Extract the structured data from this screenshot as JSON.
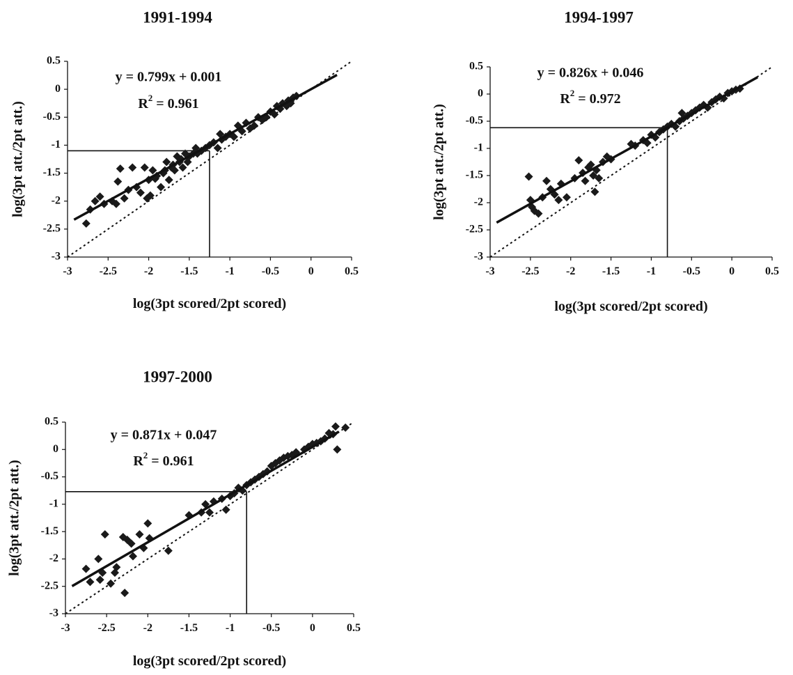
{
  "chart_data": [
    {
      "type": "scatter",
      "title": "1991-1994",
      "xlabel": "log(3pt scored/2pt scored)",
      "ylabel": "log(3pt att./2pt att.)",
      "xlim": [
        -3,
        0.5
      ],
      "ylim": [
        -3,
        0.5
      ],
      "x_ticks": [
        "-3",
        "-2.5",
        "-2",
        "-1.5",
        "-1",
        "-0.5",
        "0",
        "0.5"
      ],
      "y_ticks": [
        "0.5",
        "0",
        "-0.5",
        "-1",
        "-1.5",
        "-2",
        "-2.5",
        "-3"
      ],
      "equation": "y = 0.799x + 0.001",
      "r2_label": "R",
      "r2_sup": "2",
      "r2_value": " = 0.961",
      "fit": {
        "slope": 0.799,
        "intercept": 0.001
      },
      "reference_point": {
        "x": -1.25,
        "y": -1.1
      },
      "identity_line": true,
      "grid": false,
      "points": [
        [
          -2.77,
          -2.4
        ],
        [
          -2.72,
          -2.15
        ],
        [
          -2.66,
          -2.0
        ],
        [
          -2.6,
          -1.92
        ],
        [
          -2.55,
          -2.05
        ],
        [
          -2.45,
          -2.0
        ],
        [
          -2.4,
          -2.05
        ],
        [
          -2.38,
          -1.65
        ],
        [
          -2.35,
          -1.42
        ],
        [
          -2.3,
          -1.95
        ],
        [
          -2.25,
          -1.8
        ],
        [
          -2.2,
          -1.4
        ],
        [
          -2.15,
          -1.75
        ],
        [
          -2.1,
          -1.85
        ],
        [
          -2.05,
          -1.4
        ],
        [
          -2.02,
          -1.95
        ],
        [
          -2.0,
          -1.62
        ],
        [
          -1.98,
          -1.9
        ],
        [
          -1.95,
          -1.45
        ],
        [
          -1.92,
          -1.6
        ],
        [
          -1.9,
          -1.55
        ],
        [
          -1.85,
          -1.75
        ],
        [
          -1.82,
          -1.5
        ],
        [
          -1.8,
          -1.45
        ],
        [
          -1.78,
          -1.3
        ],
        [
          -1.75,
          -1.62
        ],
        [
          -1.72,
          -1.4
        ],
        [
          -1.7,
          -1.35
        ],
        [
          -1.68,
          -1.45
        ],
        [
          -1.65,
          -1.2
        ],
        [
          -1.62,
          -1.3
        ],
        [
          -1.6,
          -1.25
        ],
        [
          -1.58,
          -1.4
        ],
        [
          -1.55,
          -1.15
        ],
        [
          -1.52,
          -1.3
        ],
        [
          -1.5,
          -1.2
        ],
        [
          -1.45,
          -1.15
        ],
        [
          -1.42,
          -1.05
        ],
        [
          -1.4,
          -1.15
        ],
        [
          -1.35,
          -1.1
        ],
        [
          -1.3,
          -1.05
        ],
        [
          -1.25,
          -1.0
        ],
        [
          -1.2,
          -0.95
        ],
        [
          -1.15,
          -1.05
        ],
        [
          -1.12,
          -0.8
        ],
        [
          -1.1,
          -0.9
        ],
        [
          -1.05,
          -0.85
        ],
        [
          -1.0,
          -0.8
        ],
        [
          -0.95,
          -0.85
        ],
        [
          -0.9,
          -0.65
        ],
        [
          -0.85,
          -0.75
        ],
        [
          -0.8,
          -0.6
        ],
        [
          -0.75,
          -0.7
        ],
        [
          -0.7,
          -0.65
        ],
        [
          -0.65,
          -0.5
        ],
        [
          -0.6,
          -0.55
        ],
        [
          -0.55,
          -0.5
        ],
        [
          -0.5,
          -0.4
        ],
        [
          -0.45,
          -0.45
        ],
        [
          -0.42,
          -0.3
        ],
        [
          -0.38,
          -0.35
        ],
        [
          -0.35,
          -0.25
        ],
        [
          -0.3,
          -0.3
        ],
        [
          -0.28,
          -0.2
        ],
        [
          -0.25,
          -0.25
        ],
        [
          -0.22,
          -0.15
        ],
        [
          -0.18,
          -0.12
        ]
      ]
    },
    {
      "type": "scatter",
      "title": "1994-1997",
      "xlabel": "log(3pt scored/2pt scored)",
      "ylabel": "log(3pt att./2pt att.)",
      "xlim": [
        -3,
        0.5
      ],
      "ylim": [
        -3,
        0.5
      ],
      "x_ticks": [
        "-3",
        "-2.5",
        "-2",
        "-1.5",
        "-1",
        "-0.5",
        "0",
        "0.5"
      ],
      "y_ticks": [
        "0.5",
        "0",
        "-0.5",
        "-1",
        "-1.5",
        "-2",
        "-2.5",
        "-3"
      ],
      "equation": "y = 0.826x + 0.046",
      "r2_label": "R",
      "r2_sup": "2",
      "r2_value": " = 0.972",
      "fit": {
        "slope": 0.826,
        "intercept": 0.046
      },
      "reference_point": {
        "x": -0.8,
        "y": -0.62
      },
      "identity_line": true,
      "grid": false,
      "points": [
        [
          -2.52,
          -1.52
        ],
        [
          -2.5,
          -1.95
        ],
        [
          -2.48,
          -2.08
        ],
        [
          -2.45,
          -2.15
        ],
        [
          -2.4,
          -2.2
        ],
        [
          -2.35,
          -1.9
        ],
        [
          -2.3,
          -1.6
        ],
        [
          -2.25,
          -1.75
        ],
        [
          -2.2,
          -1.85
        ],
        [
          -2.15,
          -1.95
        ],
        [
          -2.12,
          -1.65
        ],
        [
          -2.05,
          -1.9
        ],
        [
          -1.95,
          -1.55
        ],
        [
          -1.9,
          -1.22
        ],
        [
          -1.85,
          -1.45
        ],
        [
          -1.82,
          -1.6
        ],
        [
          -1.78,
          -1.35
        ],
        [
          -1.75,
          -1.3
        ],
        [
          -1.72,
          -1.5
        ],
        [
          -1.7,
          -1.8
        ],
        [
          -1.68,
          -1.4
        ],
        [
          -1.65,
          -1.55
        ],
        [
          -1.6,
          -1.25
        ],
        [
          -1.55,
          -1.15
        ],
        [
          -1.5,
          -1.2
        ],
        [
          -1.25,
          -0.92
        ],
        [
          -1.2,
          -0.95
        ],
        [
          -1.1,
          -0.85
        ],
        [
          -1.05,
          -0.9
        ],
        [
          -1.0,
          -0.75
        ],
        [
          -0.95,
          -0.8
        ],
        [
          -0.9,
          -0.7
        ],
        [
          -0.85,
          -0.65
        ],
        [
          -0.8,
          -0.6
        ],
        [
          -0.75,
          -0.55
        ],
        [
          -0.7,
          -0.6
        ],
        [
          -0.65,
          -0.5
        ],
        [
          -0.62,
          -0.35
        ],
        [
          -0.6,
          -0.45
        ],
        [
          -0.55,
          -0.4
        ],
        [
          -0.5,
          -0.35
        ],
        [
          -0.45,
          -0.3
        ],
        [
          -0.4,
          -0.25
        ],
        [
          -0.35,
          -0.2
        ],
        [
          -0.3,
          -0.25
        ],
        [
          -0.25,
          -0.15
        ],
        [
          -0.2,
          -0.1
        ],
        [
          -0.15,
          -0.05
        ],
        [
          -0.1,
          -0.08
        ],
        [
          -0.05,
          0.02
        ],
        [
          0.0,
          0.05
        ],
        [
          0.05,
          0.08
        ],
        [
          0.1,
          0.1
        ]
      ]
    },
    {
      "type": "scatter",
      "title": "1997-2000",
      "xlabel": "log(3pt scored/2pt scored)",
      "ylabel": "log(3pt att./2pt att.)",
      "xlim": [
        -3,
        0.5
      ],
      "ylim": [
        -3,
        0.5
      ],
      "x_ticks": [
        "-3",
        "-2.5",
        "-2",
        "-1.5",
        "-1",
        "-0.5",
        "0",
        "0.5"
      ],
      "y_ticks": [
        "0.5",
        "0",
        "-0.5",
        "-1",
        "-1.5",
        "-2",
        "-2.5",
        "-3"
      ],
      "equation": "y = 0.871x + 0.047",
      "r2_label": "R",
      "r2_sup": "2",
      "r2_value": " = 0.961",
      "fit": {
        "slope": 0.871,
        "intercept": 0.047
      },
      "reference_point": {
        "x": -0.8,
        "y": -0.77
      },
      "identity_line": true,
      "grid": false,
      "points": [
        [
          -2.75,
          -2.18
        ],
        [
          -2.7,
          -2.42
        ],
        [
          -2.6,
          -2.0
        ],
        [
          -2.58,
          -2.38
        ],
        [
          -2.55,
          -2.25
        ],
        [
          -2.52,
          -1.55
        ],
        [
          -2.45,
          -2.45
        ],
        [
          -2.4,
          -2.25
        ],
        [
          -2.38,
          -2.15
        ],
        [
          -2.3,
          -1.6
        ],
        [
          -2.28,
          -2.62
        ],
        [
          -2.25,
          -1.65
        ],
        [
          -2.2,
          -1.72
        ],
        [
          -2.18,
          -1.95
        ],
        [
          -2.1,
          -1.55
        ],
        [
          -2.05,
          -1.8
        ],
        [
          -2.0,
          -1.35
        ],
        [
          -1.98,
          -1.62
        ],
        [
          -1.75,
          -1.85
        ],
        [
          -1.5,
          -1.2
        ],
        [
          -1.35,
          -1.15
        ],
        [
          -1.3,
          -1.0
        ],
        [
          -1.25,
          -1.15
        ],
        [
          -1.2,
          -0.95
        ],
        [
          -1.1,
          -0.9
        ],
        [
          -1.05,
          -1.1
        ],
        [
          -1.0,
          -0.85
        ],
        [
          -0.95,
          -0.8
        ],
        [
          -0.9,
          -0.7
        ],
        [
          -0.85,
          -0.75
        ],
        [
          -0.8,
          -0.65
        ],
        [
          -0.75,
          -0.6
        ],
        [
          -0.7,
          -0.55
        ],
        [
          -0.65,
          -0.5
        ],
        [
          -0.6,
          -0.45
        ],
        [
          -0.55,
          -0.4
        ],
        [
          -0.5,
          -0.3
        ],
        [
          -0.45,
          -0.25
        ],
        [
          -0.4,
          -0.2
        ],
        [
          -0.35,
          -0.15
        ],
        [
          -0.3,
          -0.12
        ],
        [
          -0.25,
          -0.1
        ],
        [
          -0.2,
          -0.05
        ],
        [
          -0.1,
          0.0
        ],
        [
          -0.05,
          0.05
        ],
        [
          0.0,
          0.1
        ],
        [
          0.05,
          0.12
        ],
        [
          0.1,
          0.15
        ],
        [
          0.15,
          0.2
        ],
        [
          0.2,
          0.3
        ],
        [
          0.25,
          0.28
        ],
        [
          0.28,
          0.42
        ],
        [
          0.3,
          0.0
        ],
        [
          0.4,
          0.4
        ]
      ]
    }
  ]
}
